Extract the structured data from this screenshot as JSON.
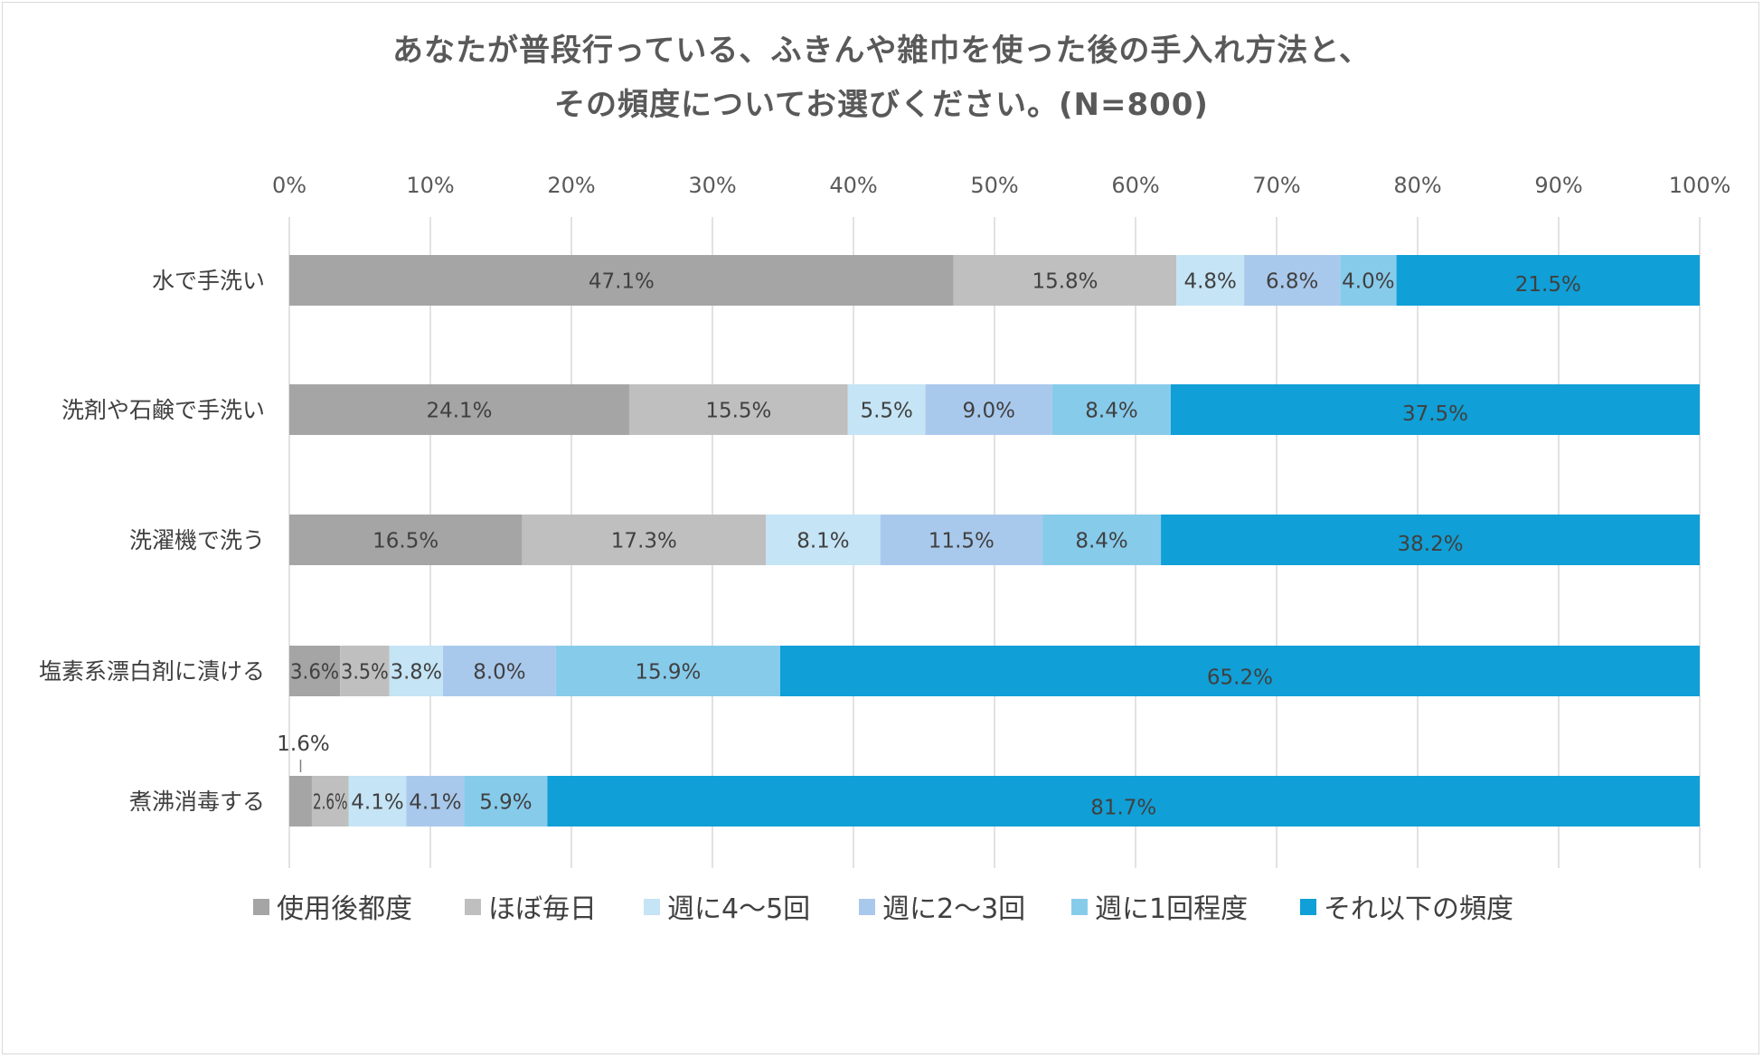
{
  "title_lines": [
    "あなたが普段行っている、ふきんや雑巾を使った後の手入れ方法と、",
    "その頻度についてお選びください。(N=800)"
  ],
  "chart_data": {
    "type": "bar",
    "orientation": "horizontal",
    "stacked": "percent",
    "categories": [
      "水で手洗い",
      "洗剤や石鹸で手洗い",
      "洗濯機で洗う",
      "塩素系漂白剤に漬ける",
      "煮沸消毒する"
    ],
    "series": [
      {
        "name": "使用後都度",
        "color": "#a5a5a5",
        "values": [
          47.1,
          24.1,
          16.5,
          3.6,
          1.6
        ]
      },
      {
        "name": "ほぼ毎日",
        "color": "#bfbfbf",
        "values": [
          15.8,
          15.5,
          17.3,
          3.5,
          2.6
        ]
      },
      {
        "name": "週に4～5回",
        "color": "#c5e4f5",
        "values": [
          4.8,
          5.5,
          8.1,
          3.8,
          4.1
        ]
      },
      {
        "name": "週に2～3回",
        "color": "#a9c9ec",
        "values": [
          6.8,
          9.0,
          11.5,
          8.0,
          4.1
        ]
      },
      {
        "name": "週に1回程度",
        "color": "#87cbeb",
        "values": [
          4.0,
          8.4,
          8.4,
          15.9,
          5.9
        ]
      },
      {
        "name": "それ以下の頻度",
        "color": "#109fd6",
        "values": [
          21.5,
          37.5,
          38.2,
          65.2,
          81.7
        ]
      }
    ],
    "data_labels": [
      [
        "47.1%",
        "15.8%",
        "4.8%",
        "6.8%",
        "4.0%",
        "21.5%"
      ],
      [
        "24.1%",
        "15.5%",
        "5.5%",
        "9.0%",
        "8.4%",
        "37.5%"
      ],
      [
        "16.5%",
        "17.3%",
        "8.1%",
        "11.5%",
        "8.4%",
        "38.2%"
      ],
      [
        "3.6%",
        "3.5%",
        "3.8%",
        "8.0%",
        "15.9%",
        "65.2%"
      ],
      [
        "1.6%",
        "2.6%",
        "4.1%",
        "4.1%",
        "5.9%",
        "81.7%"
      ]
    ],
    "highlighted_labels": {
      "color": "#e8201f",
      "cells": [
        [
          3,
          5
        ],
        [
          4,
          5
        ]
      ]
    },
    "xlim": [
      0,
      100
    ],
    "x_ticks": [
      "0%",
      "10%",
      "20%",
      "30%",
      "40%",
      "50%",
      "60%",
      "70%",
      "80%",
      "90%",
      "100%"
    ],
    "grid": true,
    "legend_position": "bottom"
  }
}
